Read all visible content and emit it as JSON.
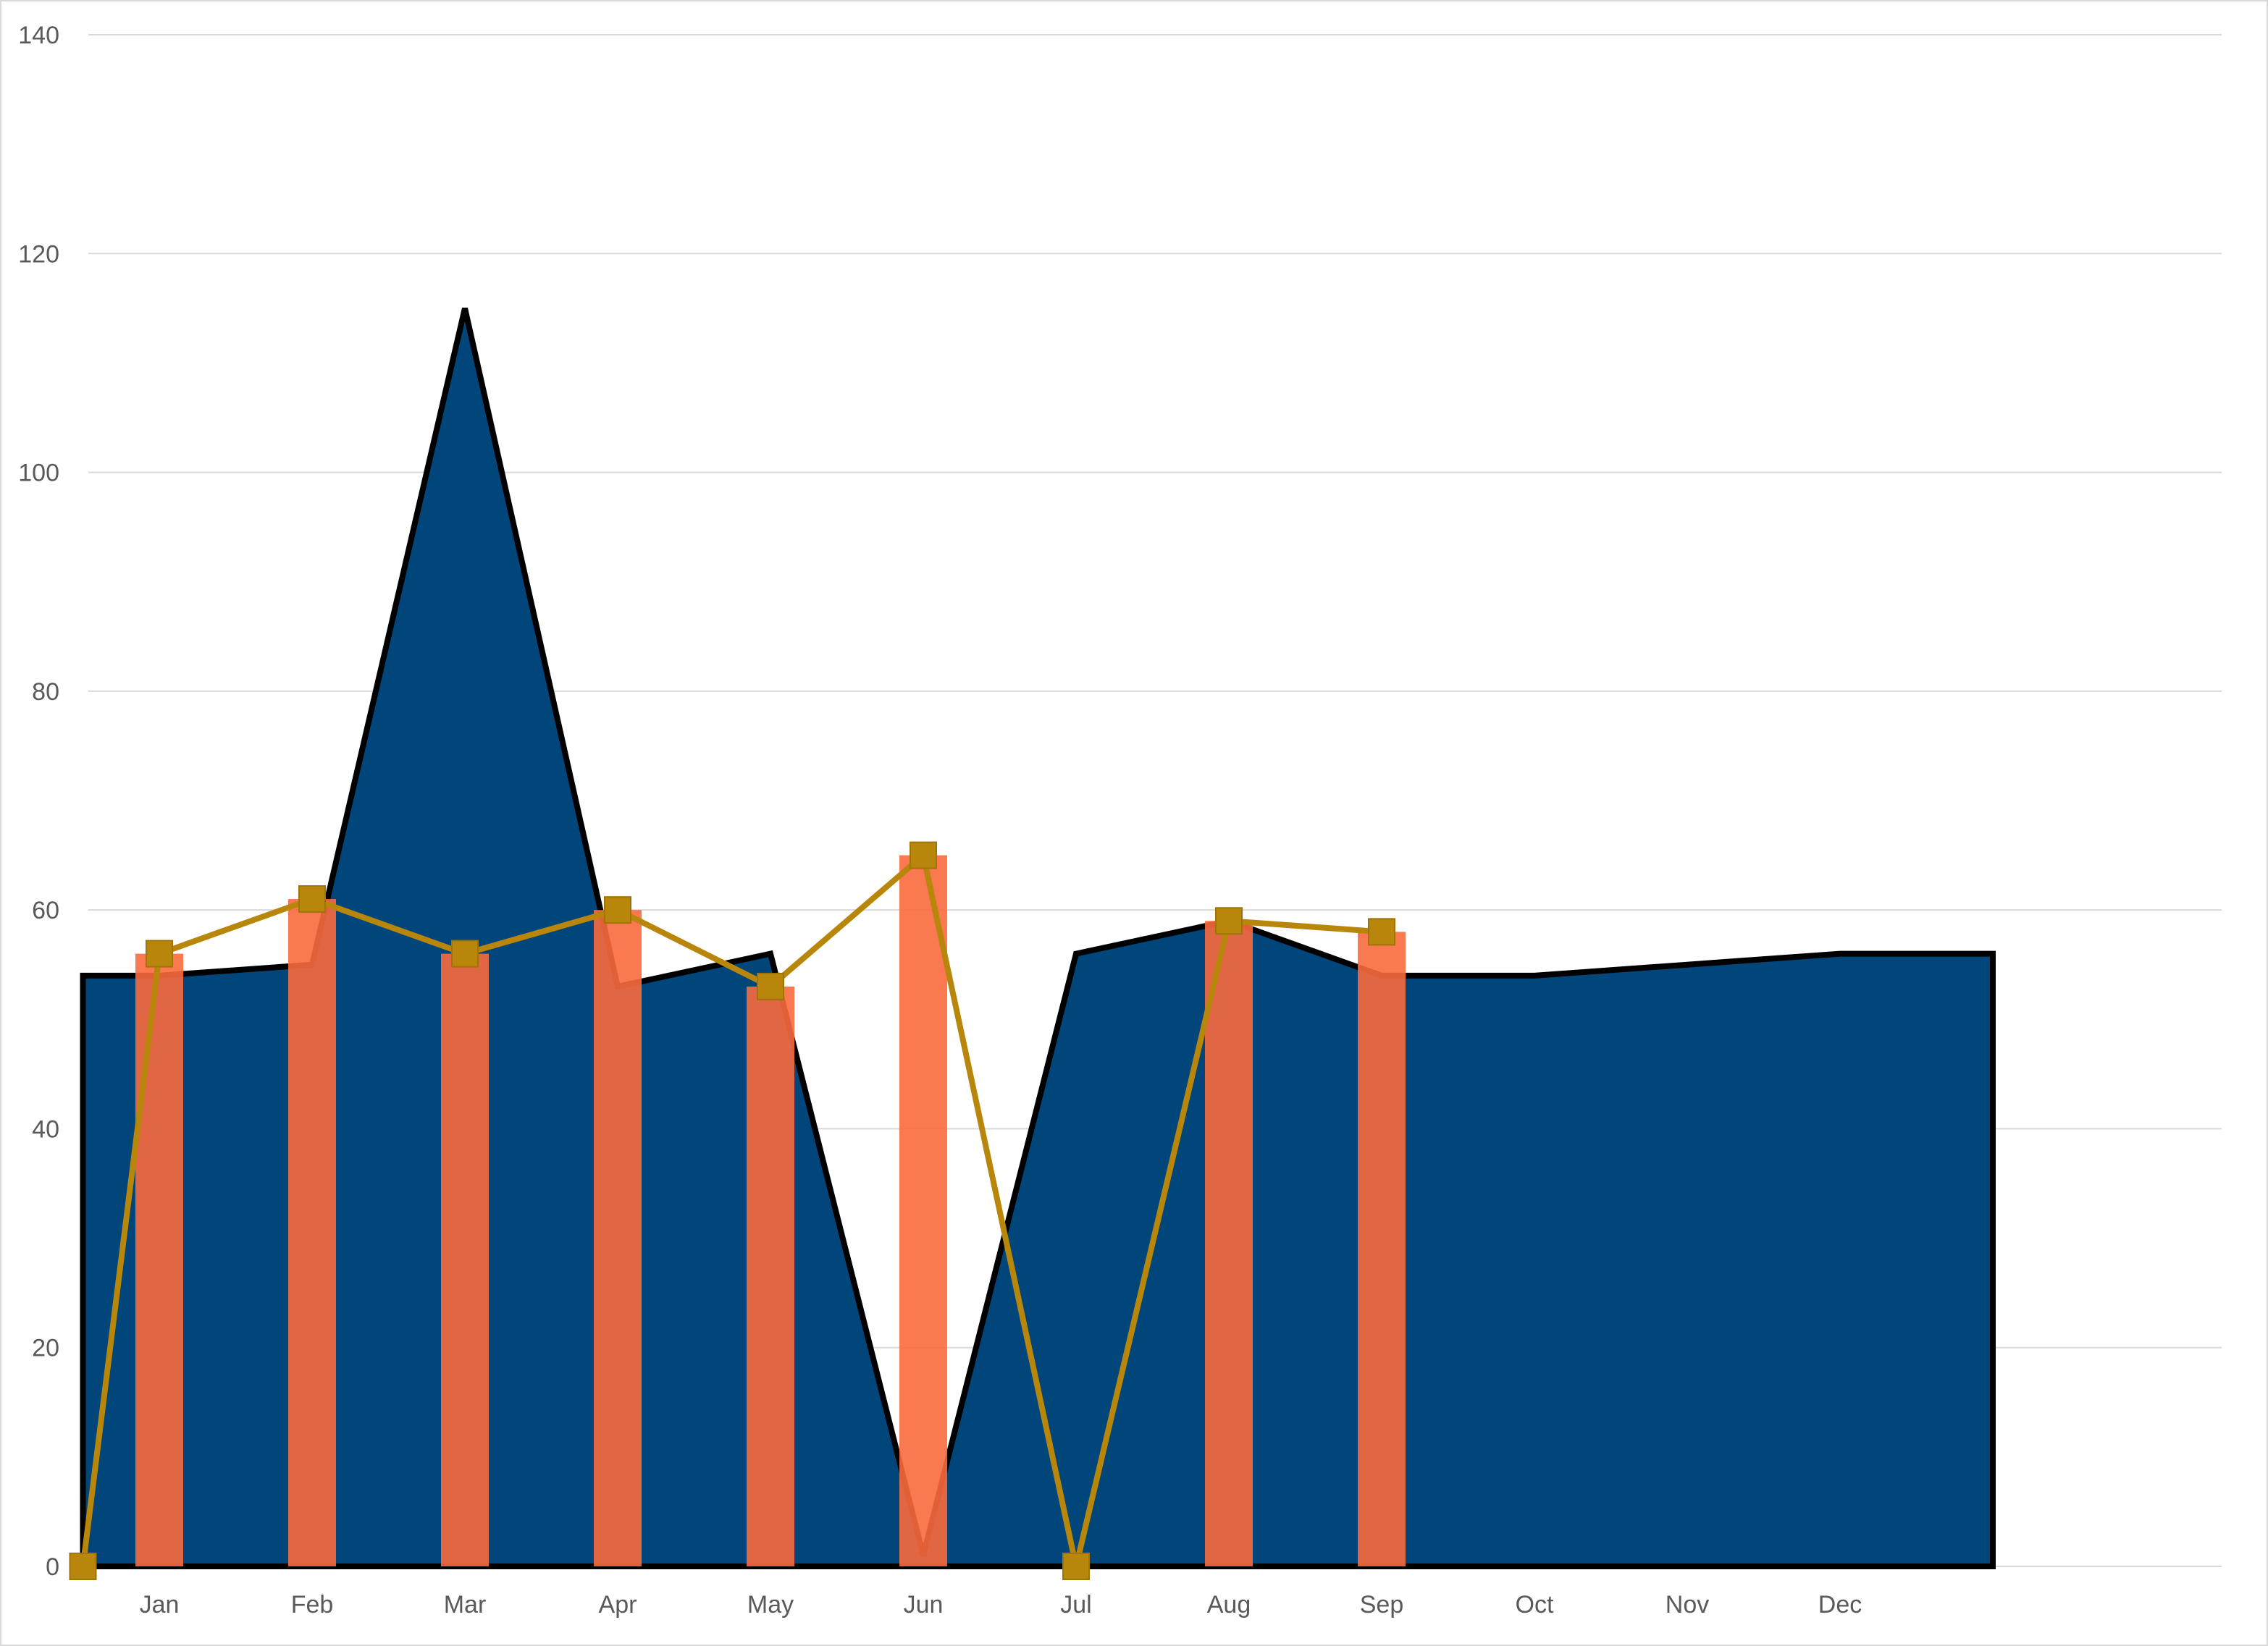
{
  "chart_data": {
    "type": "area",
    "categories": [
      "Jan",
      "Feb",
      "Mar",
      "Apr",
      "May",
      "Jun",
      "Jul",
      "Aug",
      "Sep",
      "Oct",
      "Nov",
      "Dec"
    ],
    "ylim": [
      0,
      140
    ],
    "yticks": [
      0,
      20,
      40,
      60,
      80,
      100,
      120,
      140
    ],
    "grid": true,
    "legend": "none",
    "area_series": {
      "x": [
        0.5,
        1,
        2,
        3,
        4,
        5,
        6,
        7,
        8,
        9,
        10,
        11,
        12,
        13
      ],
      "values": [
        54,
        54,
        55,
        115,
        53,
        56,
        1,
        56,
        59,
        54,
        54,
        55,
        56,
        56
      ],
      "color": "#00467a",
      "outline": "#000000"
    },
    "bar_series": {
      "x": [
        1,
        2,
        3,
        4,
        5,
        6,
        8,
        9
      ],
      "values": [
        56,
        61,
        56,
        60,
        53,
        65,
        59,
        58
      ],
      "color": "#f96a3e"
    },
    "line_series": {
      "x": [
        0.5,
        1,
        2,
        3,
        4,
        5,
        6,
        7,
        8,
        9
      ],
      "values": [
        0,
        56,
        61,
        56,
        60,
        53,
        65,
        0,
        59,
        58
      ],
      "color": "#b8860b"
    }
  }
}
